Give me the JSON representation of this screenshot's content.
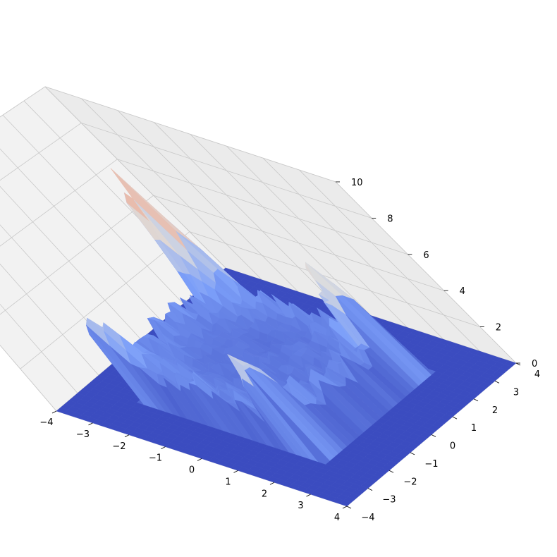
{
  "chart_data": {
    "type": "surface3d",
    "title": "",
    "xlabel": "",
    "ylabel": "",
    "zlabel": "",
    "colormap": "coolwarm",
    "xlim": [
      -4,
      4
    ],
    "ylim": [
      -4,
      4
    ],
    "zlim": [
      0,
      10
    ],
    "grid": true,
    "x_ticks": [
      "−4",
      "−3",
      "−2",
      "−1",
      "0",
      "1",
      "2",
      "3",
      "4"
    ],
    "y_ticks": [
      "−4",
      "−3",
      "−2",
      "−1",
      "0",
      "1",
      "2",
      "3",
      "4"
    ],
    "z_ticks": [
      "0",
      "2",
      "4",
      "6",
      "8",
      "10"
    ],
    "surface": {
      "base_value": 0,
      "nonzero_region": {
        "x": [
          -2.5,
          2.5
        ],
        "y": [
          -2.5,
          2.5
        ]
      },
      "peaks": [
        {
          "x": -2.2,
          "y": -2.2,
          "z": 4.5
        },
        {
          "x": -2.2,
          "y": 2.2,
          "z": 9.8
        },
        {
          "x": 2.2,
          "y": -2.2,
          "z": 5.5
        },
        {
          "x": 2.2,
          "y": 2.2,
          "z": 7.0
        }
      ]
    }
  }
}
